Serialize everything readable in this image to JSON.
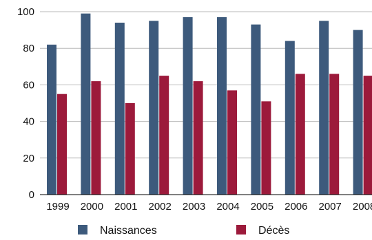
{
  "chart_data": {
    "type": "bar",
    "title": "",
    "xlabel": "",
    "ylabel": "",
    "ylim": [
      0,
      100
    ],
    "yticks": [
      0,
      20,
      40,
      60,
      80,
      100
    ],
    "grid": "horizontal",
    "legend_position": "bottom",
    "categories": [
      "1999",
      "2000",
      "2001",
      "2002",
      "2003",
      "2004",
      "2005",
      "2006",
      "2007",
      "2008"
    ],
    "x_tick_labels": [
      "1999",
      "2000",
      "2001",
      "2002",
      "2003",
      "2004",
      "2005",
      "2006",
      "2007",
      "2008"
    ],
    "series": [
      {
        "name": "Naissances",
        "color": "#3d5a7c",
        "values": [
          82,
          99,
          94,
          95,
          97,
          97,
          93,
          84,
          95,
          90
        ]
      },
      {
        "name": "Décès",
        "color": "#9c1a3b",
        "values": [
          55,
          62,
          50,
          65,
          62,
          57,
          51,
          66,
          66,
          65
        ]
      }
    ]
  }
}
